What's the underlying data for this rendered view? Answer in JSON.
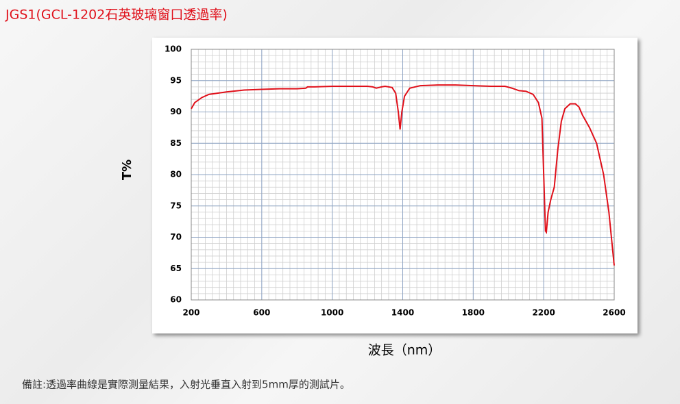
{
  "chart_data": {
    "type": "line",
    "title": "JGS1(GCL-1202石英玻璃窗口透過率)",
    "ylabel": "T%",
    "xlabel": "波長（nm）",
    "x": [
      200,
      220,
      260,
      300,
      400,
      500,
      600,
      700,
      800,
      850,
      860,
      900,
      1000,
      1100,
      1200,
      1230,
      1250,
      1280,
      1300,
      1340,
      1360,
      1375,
      1385,
      1395,
      1410,
      1440,
      1500,
      1600,
      1700,
      1800,
      1900,
      1980,
      2020,
      2060,
      2100,
      2140,
      2170,
      2190,
      2200,
      2210,
      2215,
      2225,
      2240,
      2260,
      2280,
      2300,
      2320,
      2350,
      2380,
      2400,
      2420,
      2460,
      2500,
      2540,
      2570,
      2600
    ],
    "series": [
      {
        "name": "JGS1",
        "color": "#e0101a",
        "values": [
          90.5,
          91.5,
          92.3,
          92.8,
          93.2,
          93.5,
          93.6,
          93.7,
          93.7,
          93.8,
          94.0,
          94.0,
          94.1,
          94.1,
          94.1,
          94.0,
          93.8,
          94.0,
          94.1,
          93.9,
          93.0,
          90.0,
          87.2,
          90.0,
          92.5,
          93.8,
          94.2,
          94.3,
          94.3,
          94.2,
          94.1,
          94.1,
          93.8,
          93.4,
          93.3,
          92.8,
          91.5,
          89.0,
          80.0,
          71.0,
          70.8,
          74.0,
          76.0,
          78.0,
          84.0,
          88.5,
          90.5,
          91.3,
          91.3,
          90.8,
          89.5,
          87.5,
          85.0,
          80.0,
          74.0,
          65.5
        ]
      }
    ],
    "xlim": [
      200,
      2600
    ],
    "xticks": [
      200,
      600,
      1000,
      1400,
      1800,
      2200,
      2600
    ],
    "ylim": [
      60,
      100
    ],
    "yticks": [
      60,
      65,
      70,
      75,
      80,
      85,
      90,
      95,
      100
    ],
    "grid": true
  },
  "note": "備註:透過率曲線是實際測量結果，入射光垂直入射到5mm厚的測試片。"
}
